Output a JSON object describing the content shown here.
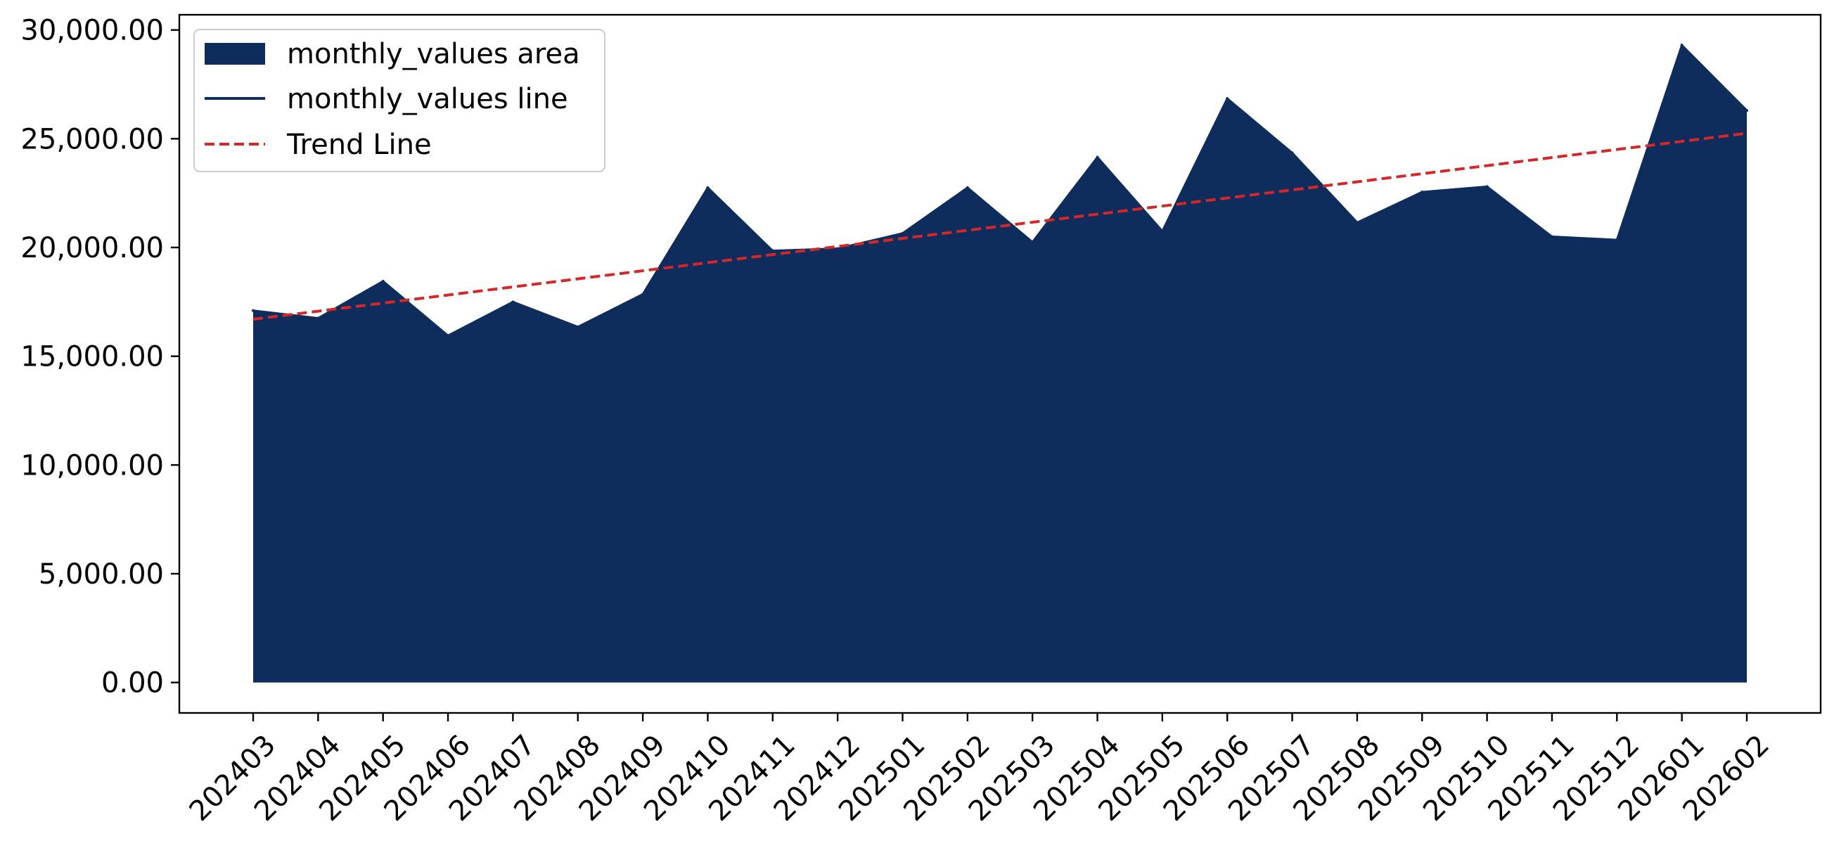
{
  "chart_data": {
    "type": "area",
    "title": "",
    "xlabel": "",
    "ylabel": "",
    "categories": [
      "202403",
      "202404",
      "202405",
      "202406",
      "202407",
      "202408",
      "202409",
      "202410",
      "202411",
      "202412",
      "202501",
      "202502",
      "202503",
      "202504",
      "202505",
      "202506",
      "202507",
      "202508",
      "202509",
      "202510",
      "202511",
      "202512",
      "202601",
      "202602"
    ],
    "series": [
      {
        "name": "monthly_values area",
        "kind": "area",
        "color": "#0e2d5c",
        "values": [
          17100,
          16750,
          18450,
          15950,
          17500,
          16350,
          17850,
          22750,
          19850,
          19950,
          20650,
          22750,
          20250,
          24150,
          20750,
          26850,
          24350,
          21150,
          22550,
          22800,
          20500,
          20350,
          29300,
          26300
        ]
      },
      {
        "name": "monthly_values line",
        "kind": "line",
        "color": "#0e2d5c",
        "values": [
          17100,
          16750,
          18450,
          15950,
          17500,
          16350,
          17850,
          22750,
          19850,
          19950,
          20650,
          22750,
          20250,
          24150,
          20750,
          26850,
          24350,
          21150,
          22550,
          22800,
          20500,
          20350,
          29300,
          26300
        ]
      },
      {
        "name": "Trend Line",
        "kind": "trend",
        "color": "#d62728",
        "start": 16700,
        "end": 25250
      }
    ],
    "ylim": [
      -1400,
      30700
    ],
    "yticks": [
      0,
      5000,
      10000,
      15000,
      20000,
      25000,
      30000
    ],
    "ytick_labels": [
      "0.00",
      "5,000.00",
      "10,000.00",
      "15,000.00",
      "20,000.00",
      "25,000.00",
      "30,000.00"
    ],
    "grid": false,
    "legend_position": "upper-left"
  }
}
